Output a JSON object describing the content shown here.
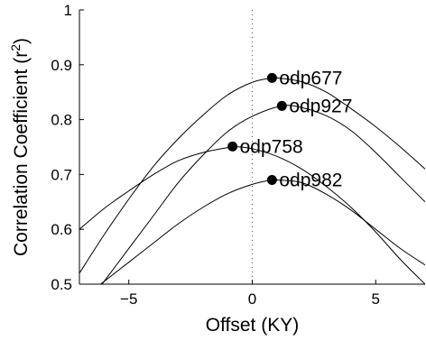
{
  "chart_data": {
    "type": "line",
    "title": "",
    "xlabel": "Offset (KY)",
    "ylabel_main": "Correlation Coefficient (r",
    "ylabel_sup": "2",
    "ylabel_close": ")",
    "xlim": [
      -7,
      7
    ],
    "ylim": [
      0.5,
      1.0
    ],
    "x_ticks": [
      -5,
      0,
      5
    ],
    "x_tick_labels": [
      "−5",
      "0",
      "5"
    ],
    "y_ticks": [
      0.5,
      0.6,
      0.7,
      0.8,
      0.9,
      1.0
    ],
    "y_tick_labels": [
      "0.5",
      "0.6",
      "0.7",
      "0.8",
      "0.9",
      "1"
    ],
    "grid": false,
    "reference_line": {
      "x": 0,
      "style": "dotted"
    },
    "line_color": "#000000",
    "series": [
      {
        "name": "odp677",
        "x": [
          -7,
          -6,
          -5,
          -4,
          -3,
          -2,
          -1,
          0,
          0.8,
          1,
          2,
          3,
          4,
          5,
          6,
          7
        ],
        "y": [
          0.52,
          0.59,
          0.655,
          0.715,
          0.765,
          0.808,
          0.845,
          0.868,
          0.876,
          0.876,
          0.869,
          0.85,
          0.82,
          0.787,
          0.75,
          0.71
        ],
        "peak": {
          "x": 0.8,
          "y": 0.876
        }
      },
      {
        "name": "odp927",
        "x": [
          -7,
          -6,
          -5,
          -4,
          -3,
          -2,
          -1,
          0,
          1.2,
          2,
          3,
          4,
          5,
          6,
          7
        ],
        "y": [
          0.445,
          0.505,
          0.565,
          0.625,
          0.685,
          0.735,
          0.778,
          0.806,
          0.825,
          0.822,
          0.807,
          0.78,
          0.74,
          0.695,
          0.65
        ],
        "peak": {
          "x": 1.2,
          "y": 0.825
        }
      },
      {
        "name": "odp758",
        "x": [
          -7,
          -6,
          -5,
          -4,
          -3,
          -2,
          -1,
          -0.8,
          0,
          1,
          2,
          3,
          4,
          5,
          6,
          7
        ],
        "y": [
          0.6,
          0.638,
          0.67,
          0.7,
          0.725,
          0.74,
          0.749,
          0.751,
          0.747,
          0.733,
          0.71,
          0.678,
          0.64,
          0.595,
          0.545,
          0.5
        ],
        "peak": {
          "x": -0.8,
          "y": 0.751
        }
      },
      {
        "name": "odp982",
        "x": [
          -7,
          -6,
          -5,
          -4,
          -3,
          -2,
          -1,
          0,
          0.8,
          1,
          2,
          3,
          4,
          5,
          6,
          7
        ],
        "y": [
          0.47,
          0.505,
          0.54,
          0.575,
          0.61,
          0.64,
          0.665,
          0.682,
          0.69,
          0.69,
          0.685,
          0.664,
          0.635,
          0.6,
          0.565,
          0.535
        ],
        "peak": {
          "x": 0.8,
          "y": 0.69
        }
      }
    ]
  }
}
